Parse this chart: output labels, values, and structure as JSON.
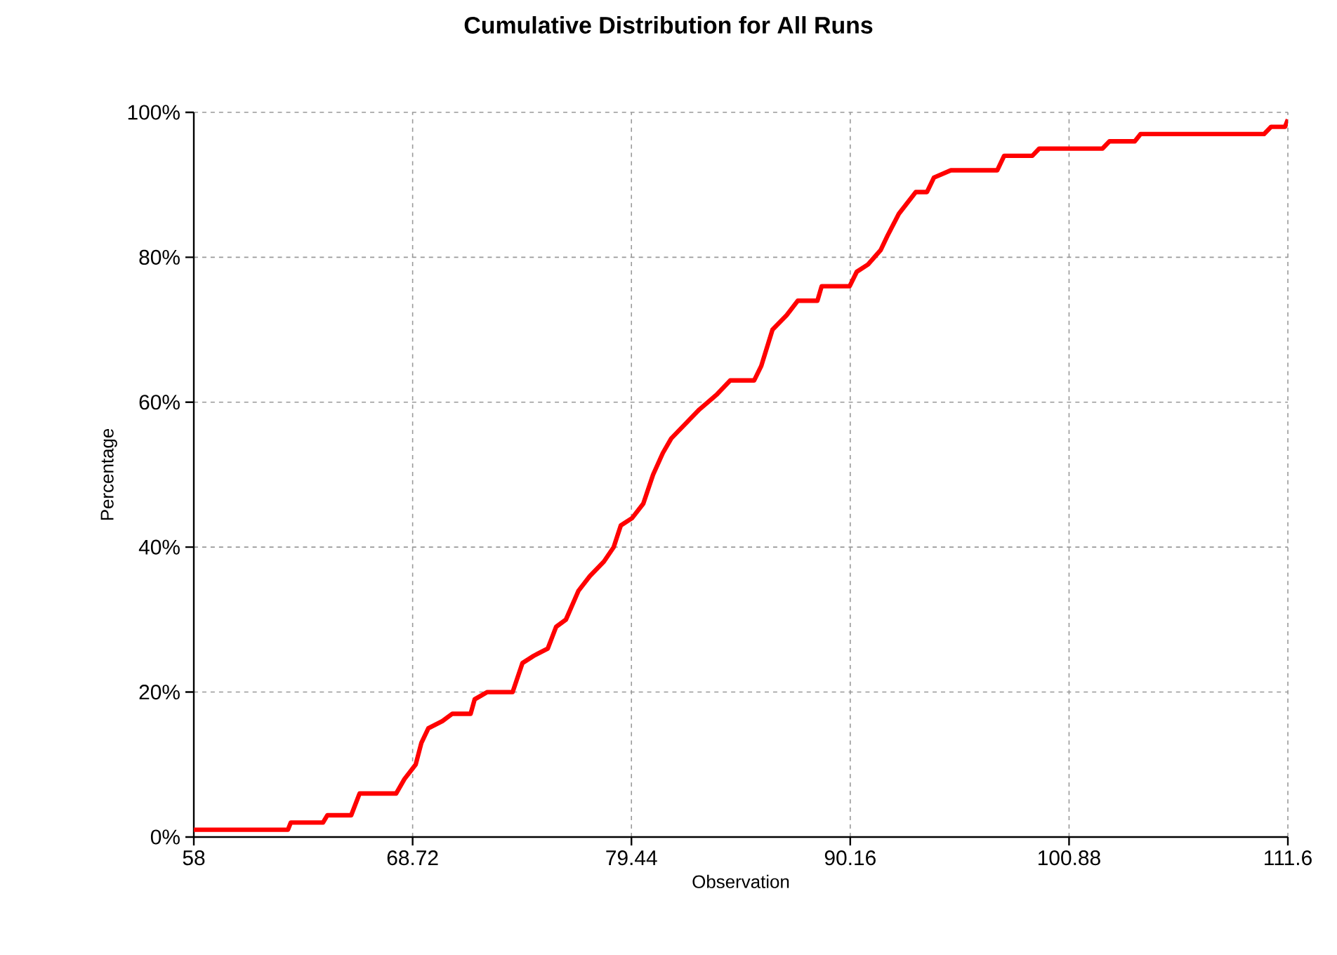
{
  "chart_data": {
    "type": "line",
    "title": "**Cumulative Distribution for All Runs**",
    "xlabel": "Observation",
    "ylabel": "Percentage",
    "series": [
      {
        "color": "#ff0000",
        "x": [
          58.0,
          62.61,
          62.75,
          64.33,
          64.54,
          65.71,
          66.12,
          67.91,
          68.32,
          68.87,
          69.15,
          69.49,
          70.18,
          70.66,
          71.56,
          71.76,
          72.38,
          73.62,
          74.1,
          74.65,
          75.34,
          75.75,
          76.23,
          76.85,
          77.4,
          78.09,
          78.57,
          78.92,
          79.47,
          80.02,
          80.5,
          80.98,
          81.39,
          82.08,
          82.77,
          83.6,
          84.28,
          85.45,
          85.8,
          86.35,
          87.04,
          87.59,
          88.55,
          88.76,
          90.13,
          90.48,
          91.03,
          91.65,
          91.99,
          92.54,
          93.37,
          93.92,
          94.26,
          95.09,
          97.36,
          97.7,
          99.08,
          99.42,
          102.52,
          102.86,
          104.1,
          104.38,
          110.43,
          110.78,
          111.46,
          111.6
        ],
        "values": [
          1,
          1,
          2,
          2,
          3,
          3,
          6,
          6,
          8,
          10,
          13,
          15,
          16,
          17,
          17,
          19,
          20,
          20,
          24,
          25,
          26,
          29,
          30,
          34,
          36,
          38,
          40,
          43,
          44,
          46,
          50,
          53,
          55,
          57,
          59,
          61,
          63,
          63,
          65,
          70,
          72,
          74,
          74,
          76,
          76,
          78,
          79,
          81,
          83,
          86,
          89,
          89,
          91,
          92,
          92,
          94,
          94,
          95,
          95,
          96,
          96,
          97,
          97,
          98,
          98,
          99
        ]
      }
    ],
    "xlim": [
      58,
      111.6
    ],
    "ylim": [
      0,
      100
    ],
    "xticks": [
      58,
      68.72,
      79.44,
      90.16,
      100.88,
      111.6
    ],
    "yticks": [
      {
        "value": 0,
        "label": "0%"
      },
      {
        "value": 20,
        "label": "20%"
      },
      {
        "value": 40,
        "label": "40%"
      },
      {
        "value": 60,
        "label": "60%"
      },
      {
        "value": 80,
        "label": "80%"
      },
      {
        "value": 100,
        "label": "100%"
      }
    ],
    "grid": true,
    "legend": false,
    "marker": "none",
    "line_style": "solid"
  }
}
